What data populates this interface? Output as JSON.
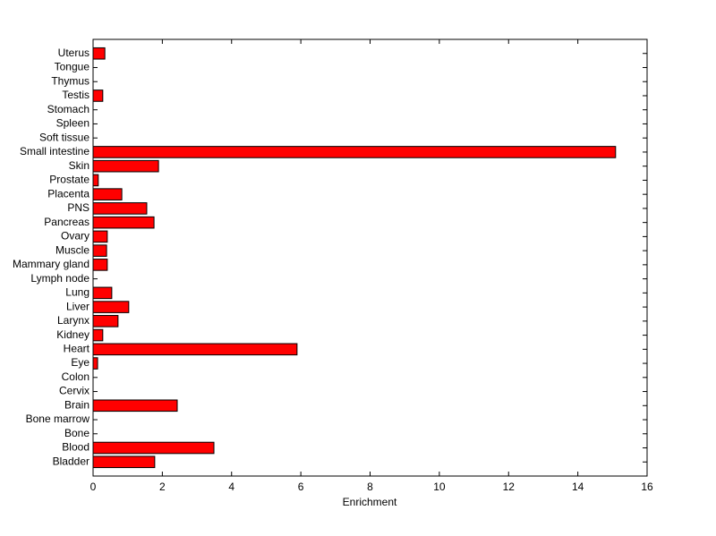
{
  "chart_data": {
    "type": "barh",
    "xlabel": "Enrichment",
    "categories": [
      "Bladder",
      "Blood",
      "Bone",
      "Bone marrow",
      "Brain",
      "Cervix",
      "Colon",
      "Eye",
      "Heart",
      "Kidney",
      "Larynx",
      "Liver",
      "Lung",
      "Lymph node",
      "Mammary gland",
      "Muscle",
      "Ovary",
      "Pancreas",
      "PNS",
      "Placenta",
      "Prostate",
      "Skin",
      "Small intestine",
      "Soft tissue",
      "Spleen",
      "Stomach",
      "Testis",
      "Thymus",
      "Tongue",
      "Uterus"
    ],
    "values": [
      1.78,
      3.49,
      0,
      0,
      2.43,
      0,
      0,
      0.13,
      5.89,
      0.28,
      0.72,
      1.03,
      0.54,
      0,
      0.41,
      0.39,
      0.41,
      1.76,
      1.55,
      0.83,
      0.15,
      1.89,
      15.09,
      0,
      0,
      0,
      0.28,
      0,
      0,
      0.34
    ],
    "color": "#ff0000",
    "xlim": [
      0,
      16
    ],
    "xticks": [
      0,
      2,
      4,
      6,
      8,
      10,
      12,
      14,
      16
    ]
  }
}
